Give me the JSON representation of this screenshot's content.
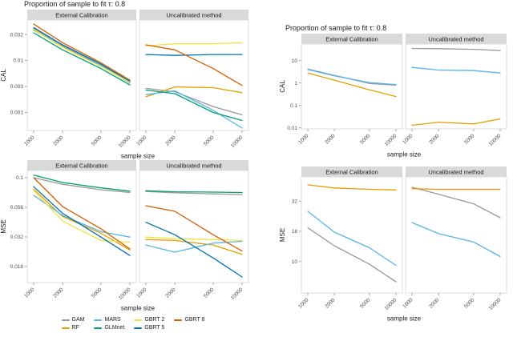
{
  "legend": {
    "entries": [
      {
        "label": "GAM",
        "color": "#999999"
      },
      {
        "label": "RF",
        "color": "#E69F00"
      },
      {
        "label": "MARS",
        "color": "#56B4E9"
      },
      {
        "label": "GLMnet",
        "color": "#009E73"
      },
      {
        "label": "GBRT 2",
        "color": "#F0E442"
      },
      {
        "label": "GBRT 5",
        "color": "#0072B2"
      },
      {
        "label": "GBRT 8",
        "color": "#D55E00"
      }
    ],
    "columns": [
      [
        0,
        1
      ],
      [
        2,
        3
      ],
      [
        4,
        5
      ],
      [
        6
      ]
    ]
  },
  "chart_data": [
    {
      "type": "line",
      "title": "Proportion of sample to fit τ: 0.8",
      "ylabel": "CAL",
      "xlabel": "sample size",
      "x_scale": "log10",
      "y_scale": "log10",
      "x": [
        1000,
        2000,
        5000,
        10000
      ],
      "y_range": [
        0.00045,
        0.06
      ],
      "y_ticks": [
        {
          "value": 0.0316,
          "label": "0.032"
        },
        {
          "value": 0.01,
          "label": "0.01"
        },
        {
          "value": 0.00316,
          "label": "0.003"
        },
        {
          "value": 0.001,
          "label": "0.001"
        }
      ],
      "facets": [
        {
          "label": "External Calibration",
          "series": [
            {
              "name": "GAM",
              "color": "#999999",
              "values": [
                0.042,
                0.019,
                0.008,
                0.004
              ]
            },
            {
              "name": "RF",
              "color": "#E69F00",
              "values": [
                0.04,
                0.018,
                0.0078,
                0.004
              ]
            },
            {
              "name": "MARS",
              "color": "#56B4E9",
              "values": [
                0.038,
                0.02,
                0.008,
                0.0037
              ]
            },
            {
              "name": "GLMnet",
              "color": "#009E73",
              "values": [
                0.034,
                0.016,
                0.007,
                0.0034
              ]
            },
            {
              "name": "GBRT 2",
              "color": "#F0E442",
              "values": [
                0.039,
                0.018,
                0.0077,
                0.0038
              ]
            },
            {
              "name": "GBRT 5",
              "color": "#0072B2",
              "values": [
                0.043,
                0.02,
                0.0085,
                0.004
              ]
            },
            {
              "name": "GBRT 8",
              "color": "#D55E00",
              "values": [
                0.05,
                0.022,
                0.009,
                0.0042
              ]
            }
          ]
        },
        {
          "label": "Uncalibrated method",
          "series": [
            {
              "name": "GAM",
              "color": "#999999",
              "values": [
                0.0029,
                0.0025,
                0.0013,
                0.0009
              ]
            },
            {
              "name": "RF",
              "color": "#E69F00",
              "values": [
                0.002,
                0.0031,
                0.003,
                0.0024
              ]
            },
            {
              "name": "MARS",
              "color": "#56B4E9",
              "values": [
                0.0022,
                0.0026,
                0.0011,
                0.0005
              ]
            },
            {
              "name": "GLMnet",
              "color": "#009E73",
              "values": [
                0.0027,
                0.0023,
                0.001,
                0.0007
              ]
            },
            {
              "name": "GBRT 2",
              "color": "#F0E442",
              "values": [
                0.019,
                0.021,
                0.021,
                0.022
              ]
            },
            {
              "name": "GBRT 5",
              "color": "#0072B2",
              "values": [
                0.013,
                0.0125,
                0.013,
                0.013
              ]
            },
            {
              "name": "GBRT 8",
              "color": "#D55E00",
              "values": [
                0.02,
                0.016,
                0.007,
                0.0033
              ]
            }
          ]
        }
      ]
    },
    {
      "type": "line",
      "title": "",
      "ylabel": "MSE",
      "xlabel": "sample size",
      "x_scale": "log10",
      "y_scale": "log10",
      "x": [
        1000,
        2000,
        5000,
        10000
      ],
      "y_range": [
        0.013,
        0.115
      ],
      "y_ticks": [
        {
          "value": 0.1,
          "label": "0.1"
        },
        {
          "value": 0.0562,
          "label": "0.056"
        },
        {
          "value": 0.0316,
          "label": "0.032"
        },
        {
          "value": 0.0178,
          "label": "0.018"
        }
      ],
      "facets": [
        {
          "label": "External Calibration",
          "series": [
            {
              "name": "GAM",
              "color": "#999999",
              "values": [
                0.1,
                0.088,
                0.079,
                0.075
              ]
            },
            {
              "name": "RF",
              "color": "#E69F00",
              "values": [
                0.08,
                0.047,
                0.034,
                0.0245
              ]
            },
            {
              "name": "MARS",
              "color": "#56B4E9",
              "values": [
                0.071,
                0.048,
                0.035,
                0.0315
              ]
            },
            {
              "name": "GLMnet",
              "color": "#009E73",
              "values": [
                0.105,
                0.091,
                0.082,
                0.077
              ]
            },
            {
              "name": "GBRT 2",
              "color": "#F0E442",
              "values": [
                0.078,
                0.043,
                0.0295,
                0.0285
              ]
            },
            {
              "name": "GBRT 5",
              "color": "#0072B2",
              "values": [
                0.084,
                0.05,
                0.0315,
                0.022
              ]
            },
            {
              "name": "GBRT 8",
              "color": "#D55E00",
              "values": [
                0.1,
                0.057,
                0.037,
                0.025
              ]
            }
          ]
        },
        {
          "label": "Uncalibrated method",
          "series": [
            {
              "name": "GAM",
              "color": "#999999",
              "values": [
                0.0765,
                0.0745,
                0.073,
                0.072
              ]
            },
            {
              "name": "RF",
              "color": "#E69F00",
              "values": [
                0.03,
                0.0295,
                0.027,
                0.0225
              ]
            },
            {
              "name": "MARS",
              "color": "#56B4E9",
              "values": [
                0.027,
                0.0235,
                0.028,
                0.029
              ]
            },
            {
              "name": "GLMnet",
              "color": "#009E73",
              "values": [
                0.0775,
                0.076,
                0.0755,
                0.075
              ]
            },
            {
              "name": "GBRT 2",
              "color": "#F0E442",
              "values": [
                0.0315,
                0.0305,
                0.03,
                0.0295
              ]
            },
            {
              "name": "GBRT 5",
              "color": "#0072B2",
              "values": [
                0.042,
                0.033,
                0.021,
                0.0145
              ]
            },
            {
              "name": "GBRT 8",
              "color": "#D55E00",
              "values": [
                0.058,
                0.052,
                0.033,
                0.024
              ]
            }
          ]
        }
      ]
    },
    {
      "type": "line",
      "title": "Proportion of sample to fit τ: 0.8",
      "ylabel": "CAL",
      "xlabel": "sample size",
      "x_scale": "log10",
      "y_scale": "log10",
      "x": [
        1000,
        2000,
        5000,
        10000
      ],
      "y_range": [
        0.009,
        55
      ],
      "y_ticks": [
        {
          "value": 10,
          "label": "10"
        },
        {
          "value": 1,
          "label": "1"
        },
        {
          "value": 0.1,
          "label": "0.1"
        },
        {
          "value": 0.01,
          "label": "0.01"
        }
      ],
      "facets": [
        {
          "label": "External Calibration",
          "series": [
            {
              "name": "GAM",
              "color": "#999999",
              "values": [
                4.2,
                2.2,
                0.95,
                0.8
              ]
            },
            {
              "name": "RF",
              "color": "#E69F00",
              "values": [
                2.8,
                1.35,
                0.5,
                0.25
              ]
            },
            {
              "name": "MARS",
              "color": "#56B4E9",
              "values": [
                4.0,
                2.1,
                1.05,
                0.85
              ]
            }
          ]
        },
        {
          "label": "Uncalibrated method",
          "series": [
            {
              "name": "GAM",
              "color": "#999999",
              "values": [
                35,
                34,
                32,
                28
              ]
            },
            {
              "name": "RF",
              "color": "#E69F00",
              "values": [
                0.013,
                0.018,
                0.015,
                0.025
              ]
            },
            {
              "name": "MARS",
              "color": "#56B4E9",
              "values": [
                5.0,
                3.8,
                3.6,
                2.8
              ]
            }
          ]
        }
      ]
    },
    {
      "type": "line",
      "title": "",
      "ylabel": "MSE",
      "xlabel": "sample size",
      "x_scale": "log10",
      "y_scale": "log10",
      "x": [
        1000,
        2000,
        5000,
        10000
      ],
      "y_range": [
        5.5,
        50
      ],
      "y_ticks": [
        {
          "value": 31.6,
          "label": "32"
        },
        {
          "value": 17.8,
          "label": "18"
        },
        {
          "value": 10,
          "label": "10"
        }
      ],
      "facets": [
        {
          "label": "External Calibration",
          "series": [
            {
              "name": "GAM",
              "color": "#999999",
              "values": [
                19,
                13.5,
                9.5,
                6.8
              ]
            },
            {
              "name": "RF",
              "color": "#E69F00",
              "values": [
                43,
                40.5,
                39.5,
                39
              ]
            },
            {
              "name": "MARS",
              "color": "#56B4E9",
              "values": [
                26,
                17.5,
                13,
                9.3
              ]
            }
          ]
        },
        {
          "label": "Uncalibrated method",
          "series": [
            {
              "name": "GAM",
              "color": "#999999",
              "values": [
                41,
                36,
                30,
                23
              ]
            },
            {
              "name": "RF",
              "color": "#E69F00",
              "values": [
                40,
                39.5,
                39.5,
                39.5
              ]
            },
            {
              "name": "MARS",
              "color": "#56B4E9",
              "values": [
                21,
                17,
                14.5,
                11
              ]
            }
          ]
        }
      ]
    }
  ]
}
